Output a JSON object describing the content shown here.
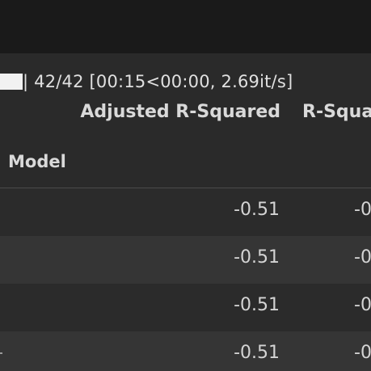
{
  "progress": {
    "text": "| 42/42 [00:15<00:00,  2.69it/s]",
    "completed": 42,
    "total": 42
  },
  "table": {
    "index_name": "Model",
    "columns": [
      "Adjusted R-Squared",
      "R-Squa"
    ],
    "rows": [
      {
        "adjusted_r_squared": "-0.51",
        "r_squared": "-0"
      },
      {
        "adjusted_r_squared": "-0.51",
        "r_squared": "-0"
      },
      {
        "adjusted_r_squared": "-0.51",
        "r_squared": "-0"
      },
      {
        "adjusted_r_squared": "-0.51",
        "r_squared": "-0"
      }
    ]
  },
  "colors": {
    "background": "#2b2b2b",
    "top_bar": "#1a1a1a",
    "row_stripe": "#353535",
    "text": "#d4d4d4",
    "progress_fill": "#f2f2f2"
  }
}
